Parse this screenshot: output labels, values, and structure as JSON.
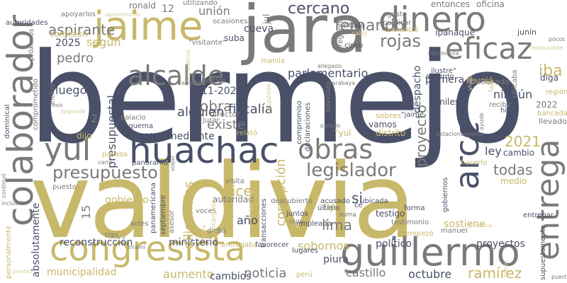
{
  "palette": {
    "navy": "#4a5068",
    "gold": "#c8b86a",
    "gray": "#7a7a78",
    "light_gold": "#d8cc98",
    "light_gray": "#bdbdbd"
  },
  "words": [
    {
      "text": "bermejo",
      "color": "#4a5068"
    },
    {
      "text": "valdivia",
      "color": "#c8b86a"
    },
    {
      "text": "jara",
      "color": "#7a7a78"
    },
    {
      "text": "jaime",
      "color": "#c8b86a"
    },
    {
      "text": "colaborador",
      "color": "#7a7a78"
    },
    {
      "text": "congresista",
      "color": "#c8b86a"
    },
    {
      "text": "guillermo",
      "color": "#7a7a78"
    },
    {
      "text": "dinero",
      "color": "#7a7a78"
    },
    {
      "text": "eficaz",
      "color": "#7a7a78"
    },
    {
      "text": "huachac",
      "color": "#4a5068"
    },
    {
      "text": "entrega",
      "color": "#7a7a78"
    },
    {
      "text": "arcc",
      "color": "#4a5068"
    },
    {
      "text": "alcalde",
      "color": "#7a7a78"
    },
    {
      "text": "obras",
      "color": "#7a7a78"
    },
    {
      "text": "yul",
      "color": "#7a7a78"
    },
    {
      "text": "legislador",
      "color": "#7a7a78"
    },
    {
      "text": "presupuesto",
      "color": "#7a7a78"
    },
    {
      "text": "cercano",
      "color": "#4a5068"
    },
    {
      "text": "fernando",
      "color": "#7a7a78"
    },
    {
      "text": "rojas",
      "color": "#7a7a78"
    },
    {
      "text": "parlamentario",
      "color": "#4a5068"
    },
    {
      "text": "aspirante",
      "color": "#7a7a78"
    },
    {
      "text": "según",
      "color": "#c8b86a"
    },
    {
      "text": "pedro",
      "color": "#7a7a78"
    },
    {
      "text": "2025",
      "color": "#4a5068"
    },
    {
      "text": "unión",
      "color": "#7a7a78"
    },
    {
      "text": "obra",
      "color": "#7a7a78"
    },
    {
      "text": "alguien",
      "color": "#4a5068"
    },
    {
      "text": "fiscalía",
      "color": "#4a5068"
    },
    {
      "text": "existe",
      "color": "#7a7a78"
    },
    {
      "text": "presupuestal",
      "color": "#4a5068"
    },
    {
      "text": "corrupción",
      "color": "#c8b86a"
    },
    {
      "text": "proyecto",
      "color": "#7a7a78"
    },
    {
      "text": "2021",
      "color": "#c8b86a"
    },
    {
      "text": "primera",
      "color": "#4a5068"
    },
    {
      "text": "iba",
      "color": "#c8b86a"
    },
    {
      "text": "ningún",
      "color": "#4a5068"
    },
    {
      "text": "luego",
      "color": "#4a5068"
    },
    {
      "text": "dice",
      "color": "#c8b86a"
    },
    {
      "text": "todas",
      "color": "#7a7a78"
    },
    {
      "text": "ley",
      "color": "#4a5068"
    },
    {
      "text": "si",
      "color": "#4a5068"
    },
    {
      "text": "lima",
      "color": "#7a7a78"
    },
    {
      "text": "sobornos",
      "color": "#c8b86a"
    },
    {
      "text": "reconstrucción",
      "color": "#4a5068"
    },
    {
      "text": "ministerio",
      "color": "#4a5068"
    },
    {
      "text": "noticia",
      "color": "#7a7a78"
    },
    {
      "text": "castillo",
      "color": "#7a7a78"
    },
    {
      "text": "octubre",
      "color": "#4a5068"
    },
    {
      "text": "ramírez",
      "color": "#c8b86a"
    },
    {
      "text": "político",
      "color": "#4a5068"
    },
    {
      "text": "proyectos",
      "color": "#4a5068"
    },
    {
      "text": "aumento",
      "color": "#c8b86a"
    },
    {
      "text": "cambios",
      "color": "#4a5068"
    },
    {
      "text": "municipalidad",
      "color": "#c8b86a"
    },
    {
      "text": "piura",
      "color": "#4a5068"
    },
    {
      "text": "absolutamente",
      "color": "#4a5068"
    },
    {
      "text": "gobierno",
      "color": "#c8b86a"
    },
    {
      "text": "diligencias",
      "color": "#c8b86a"
    },
    {
      "text": "11-2024",
      "color": "#4a5068"
    },
    {
      "text": "mediante",
      "color": "#4a5068"
    },
    {
      "text": "2",
      "color": "#7a7a78"
    },
    {
      "text": "15",
      "color": "#7a7a78"
    },
    {
      "text": "año",
      "color": "#4a5068"
    },
    {
      "text": "vamos",
      "color": "#4a5068"
    },
    {
      "text": "autoridad",
      "color": "#7a7a78"
    },
    {
      "text": "tipo",
      "color": "#c8b86a"
    },
    {
      "text": "sostiene",
      "color": "#c8b86a"
    },
    {
      "text": "despacho",
      "color": "#4a5068"
    },
    {
      "text": "reunió",
      "color": "#c8b86a"
    },
    {
      "text": "cueva",
      "color": "#4a5068"
    },
    {
      "text": "suba",
      "color": "#4a5068"
    },
    {
      "text": "comisión",
      "color": "#c8b86a"
    },
    {
      "text": "medio",
      "color": "#c8b86a"
    },
    {
      "text": "cambio",
      "color": "#4a5068"
    },
    {
      "text": "2022",
      "color": "#7a7a78"
    },
    {
      "text": "diga",
      "color": "#4a5068"
    },
    {
      "text": "llevado",
      "color": "#7a7a78"
    },
    {
      "text": "bancada",
      "color": "#c8b86a"
    },
    {
      "text": "hizo",
      "color": "#4a5068"
    },
    {
      "text": "recibir",
      "color": "#7a7a78"
    },
    {
      "text": "miles",
      "color": "#4a5068"
    },
    {
      "text": "entonces",
      "color": "#7a7a78"
    },
    {
      "text": "oficina",
      "color": "#7a7a78"
    },
    {
      "text": "agosto",
      "color": "#7a7a78"
    },
    {
      "text": "publicar",
      "color": "#7a7a78"
    },
    {
      "text": "encontró",
      "color": "#c8b86a"
    },
    {
      "text": "ipanaqué",
      "color": "#4a5068"
    },
    {
      "text": "junín",
      "color": "#4a5068"
    },
    {
      "text": "declarado",
      "color": "#7a7a78"
    },
    {
      "text": "acuerdo",
      "color": "#4a5068"
    },
    {
      "text": "ronald",
      "color": "#7a7a78"
    },
    {
      "text": "12",
      "color": "#7a7a78"
    },
    {
      "text": "utilizando",
      "color": "#7a7a78"
    },
    {
      "text": "autoridades",
      "color": "#4a5068"
    },
    {
      "text": "apoyarlos",
      "color": "#7a7a78"
    },
    {
      "text": "ocasiones",
      "color": "#7a7a78"
    },
    {
      "text": "\"visitante\"",
      "color": "#7a7a78"
    },
    {
      "text": "citado",
      "color": "#4a5068"
    },
    {
      "text": "cinco",
      "color": "#4a5068"
    },
    {
      "text": "berríos",
      "color": "#7a7a78"
    },
    {
      "text": "director",
      "color": "#7a7a78"
    },
    {
      "text": "palacio",
      "color": "#7a7a78"
    },
    {
      "text": "s40000",
      "color": "#4a5068"
    },
    {
      "text": "esquema",
      "color": "#4a5068"
    },
    {
      "text": "dijo",
      "color": "#c8b86a"
    },
    {
      "text": "panorama",
      "color": "#4a5068"
    },
    {
      "text": "visita",
      "color": "#7a7a78"
    },
    {
      "text": "relató",
      "color": "#c8b86a"
    },
    {
      "text": "distrito",
      "color": "#c8b86a"
    },
    {
      "text": "\"yul",
      "color": "#c8b86a"
    },
    {
      "text": "compromiso",
      "color": "#4a5068"
    },
    {
      "text": "declaraciones",
      "color": "#4a5068"
    },
    {
      "text": "conocer",
      "color": "#4a5068"
    },
    {
      "text": "sobres",
      "color": "#c8b86a"
    },
    {
      "text": "\"jaime",
      "color": "#4a5068"
    },
    {
      "text": "ilustre\"",
      "color": "#4a5068"
    },
    {
      "text": "descubierto",
      "color": "#7a7a78"
    },
    {
      "text": "acusado",
      "color": "#4a5068"
    },
    {
      "text": "ubicada",
      "color": "#4a5068"
    },
    {
      "text": "último",
      "color": "#4a5068"
    },
    {
      "text": "juntos",
      "color": "#4a5068"
    },
    {
      "text": "empleado",
      "color": "#4a5068"
    },
    {
      "text": "testigo",
      "color": "#4a5068"
    },
    {
      "text": "testimonio",
      "color": "#7a7a78"
    },
    {
      "text": "forma",
      "color": "#4a5068"
    },
    {
      "text": "ce",
      "color": "#4a5068"
    },
    {
      "text": "transacciones",
      "color": "#4a5068"
    },
    {
      "text": "voces",
      "color": "#7a7a78"
    },
    {
      "text": "soles",
      "color": "#7a7a78"
    },
    {
      "text": "tras",
      "color": "#7a7a78"
    },
    {
      "text": "dicha",
      "color": "#7a7a78"
    },
    {
      "text": "entregaba",
      "color": "#c8b86a"
    },
    {
      "text": "favorecer",
      "color": "#4a5068"
    },
    {
      "text": "lugares",
      "color": "#4a5068"
    },
    {
      "text": "perú",
      "color": "#c8b86a"
    },
    {
      "text": "manuel",
      "color": "#7a7a78"
    },
    {
      "text": "empezó",
      "color": "#c8b86a"
    },
    {
      "text": "entregar",
      "color": "#4a5068"
    },
    {
      "text": "supuestamente",
      "color": "#4a5068"
    },
    {
      "text": "panamericana",
      "color": "#4a5068"
    },
    {
      "text": "septiembre",
      "color": "#4a5068"
    },
    {
      "text": "asesor",
      "color": "#7a7a78"
    },
    {
      "text": "pasaba",
      "color": "#c8b86a"
    },
    {
      "text": "puesto",
      "color": "#7a7a78"
    },
    {
      "text": "personalmente",
      "color": "#c8b86a"
    },
    {
      "text": "jurar",
      "color": "#7a7a78"
    },
    {
      "text": "pregunta",
      "color": "#7a7a78"
    },
    {
      "text": "incluir",
      "color": "#7a7a78"
    },
    {
      "text": "comprometido",
      "color": "#7a7a78"
    },
    {
      "text": "dominical",
      "color": "#4a5068"
    },
    {
      "text": "jul",
      "color": "#7a7a78"
    },
    {
      "text": "hacerlo",
      "color": "#c8b86a"
    },
    {
      "text": "gobiernos",
      "color": "#4a5068"
    },
    {
      "text": "ubicaba",
      "color": "#7a7a78"
    },
    {
      "text": "próximos",
      "color": "#7a7a78"
    },
    {
      "text": "región",
      "color": "#c8b86a"
    },
    {
      "text": "manila",
      "color": "#c8b86a"
    },
    {
      "text": "legislativo",
      "color": "#d8cc98"
    },
    {
      "text": "televisión",
      "color": "#7a7a78"
    },
    {
      "text": "responde",
      "color": "#d8cc98"
    },
    {
      "text": "cabo",
      "color": "#d8cc98"
    },
    {
      "text": "fajo",
      "color": "#d8cc98"
    },
    {
      "text": "vivió",
      "color": "#d8cc98"
    },
    {
      "text": "allegado",
      "color": "#7a7a78"
    },
    {
      "text": "informante",
      "color": "#7a7a78"
    },
    {
      "text": "restaurante",
      "color": "#d8cc98"
    },
    {
      "text": "pocos",
      "color": "#7a7a78"
    },
    {
      "text": "encargado",
      "color": "#d8cc98"
    },
    {
      "text": "viajar",
      "color": "#7a7a78"
    },
    {
      "text": "suma",
      "color": "#7a7a78"
    },
    {
      "text": "chifa",
      "color": "#7a7a78"
    },
    {
      "text": "parado",
      "color": "#7a7a78"
    },
    {
      "text": "ayude",
      "color": "#7a7a78"
    },
    {
      "text": "carabaya",
      "color": "#7a7a78"
    },
    {
      "text": "esquina",
      "color": "#7a7a78"
    },
    {
      "text": "segunda",
      "color": "#d8cc98"
    },
    {
      "text": "inclusión",
      "color": "#7a7a78"
    },
    {
      "text": "continuó",
      "color": "#7a7a78"
    },
    {
      "text": "pueblo",
      "color": "#d8cc98"
    },
    {
      "text": "aprovechando",
      "color": "#d8cc98"
    },
    {
      "text": "estacionamiento",
      "color": "#7a7a78"
    },
    {
      "text": "puerta",
      "color": "#7a7a78"
    },
    {
      "text": "miami",
      "color": "#7a7a78"
    },
    {
      "text": "carro",
      "color": "#7a7a78"
    },
    {
      "text": "frente",
      "color": "#d8cc98"
    },
    {
      "text": "fecha",
      "color": "#d8cc98"
    },
    {
      "text": "nombre",
      "color": "#d8cc98"
    },
    {
      "text": "\"está",
      "color": "#7a7a78"
    },
    {
      "text": "economía",
      "color": "#d8cc98"
    }
  ]
}
